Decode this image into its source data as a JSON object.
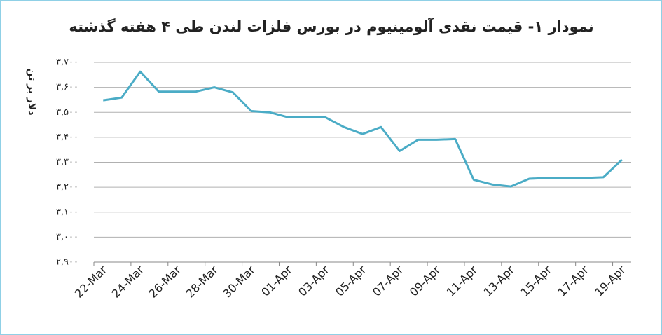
{
  "chart_data": {
    "type": "line",
    "title": "نمودار ۱- قیمت نقدی آلومینیوم در بورس فلزات لندن طی ۴ هفته گذشته",
    "y_label": "دلار بر تن",
    "categories": [
      "22-Mar",
      null,
      "24-Mar",
      null,
      "26-Mar",
      null,
      "28-Mar",
      null,
      "30-Mar",
      null,
      "01-Apr",
      null,
      "03-Apr",
      null,
      "05-Apr",
      null,
      "07-Apr",
      null,
      "09-Apr",
      null,
      "11-Apr",
      null,
      "13-Apr",
      null,
      "15-Apr",
      null,
      "17-Apr",
      null,
      "19-Apr"
    ],
    "values": [
      3548,
      3559,
      3663,
      3583,
      3583,
      3583,
      3600,
      3580,
      3505,
      3500,
      3480,
      3480,
      3480,
      3441,
      3413,
      3441,
      3345,
      3390,
      3390,
      3393,
      3230,
      3211,
      3203,
      3234,
      3237,
      3237,
      3237,
      3240,
      3310
    ],
    "color": "#4bacc6",
    "ylim": [
      2900,
      3700
    ],
    "yticks": [
      {
        "value": 2900,
        "label": "۲,۹۰۰"
      },
      {
        "value": 3000,
        "label": "۳,۰۰۰"
      },
      {
        "value": 3100,
        "label": "۳,۱۰۰"
      },
      {
        "value": 3200,
        "label": "۳,۲۰۰"
      },
      {
        "value": 3300,
        "label": "۳,۳۰۰"
      },
      {
        "value": 3400,
        "label": "۳,۴۰۰"
      },
      {
        "value": 3500,
        "label": "۳,۵۰۰"
      },
      {
        "value": 3600,
        "label": "۳,۶۰۰"
      },
      {
        "value": 3700,
        "label": "۳,۷۰۰"
      }
    ],
    "grid": true
  }
}
